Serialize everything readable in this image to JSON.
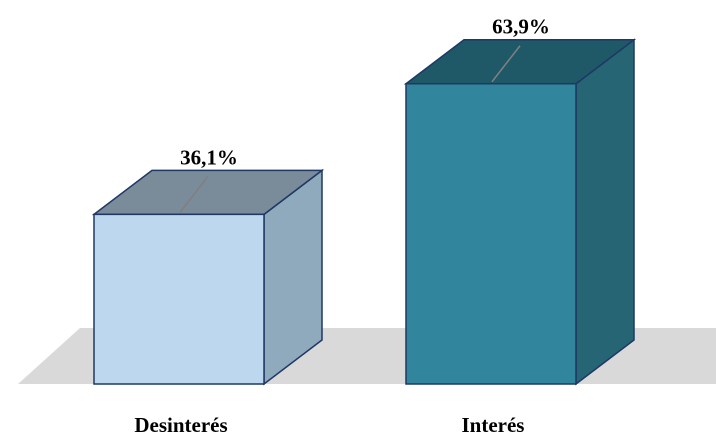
{
  "chart_data": {
    "type": "bar",
    "categories": [
      "Desinterés",
      "Interés"
    ],
    "values": [
      36.1,
      63.9
    ],
    "value_labels": [
      "36,1%",
      "63,9%"
    ],
    "ylim": [
      0,
      70
    ],
    "grid": false,
    "legend": "none",
    "colors": {
      "front": [
        "#bdd7ee",
        "#31859c"
      ],
      "side": [
        "#8eaabc",
        "#256574"
      ],
      "top": [
        "#7a8b9a",
        "#1f5968"
      ],
      "outline": "#1f3864",
      "floor": "#d9d9d9",
      "leader": "#808080"
    }
  }
}
